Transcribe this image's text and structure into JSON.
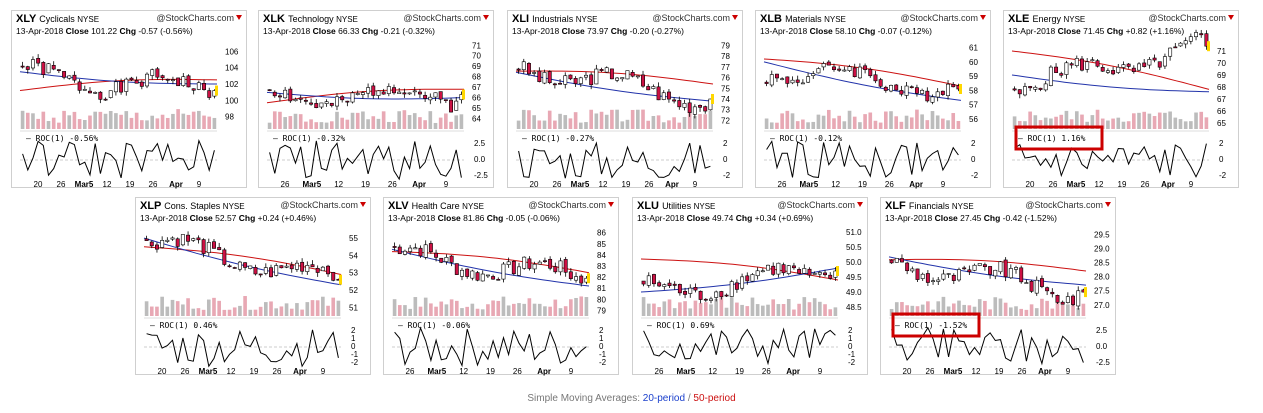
{
  "charts": [
    {
      "symbol": "XLY",
      "name": "Cyclicals",
      "exchange": "NYSE",
      "brand": "@StockCharts.com",
      "date": "13-Apr-2018",
      "close_label": "Close",
      "close": "101.22",
      "chg_label": "Chg",
      "chg": "-0.57 (-0.56%)",
      "chg_dir": "down",
      "yticks": [
        "106",
        "104",
        "102",
        "100",
        "98"
      ],
      "ymin": 96.5,
      "ymax": 107.5,
      "roc_label": "ROC(1) -0.56%",
      "roc_ticks": [],
      "xticks": [
        "20",
        "26",
        "Mar5",
        "12",
        "19",
        "26",
        "Apr",
        "9"
      ],
      "highlight": false,
      "seed": 1,
      "start": 103,
      "end": 101.2,
      "sma20": [
        103.5,
        102.0
      ],
      "sma50": [
        101.2,
        102.5
      ]
    },
    {
      "symbol": "XLK",
      "name": "Technology",
      "exchange": "NYSE",
      "brand": "@StockCharts.com",
      "date": "13-Apr-2018",
      "close_label": "Close",
      "close": "66.33",
      "chg_label": "Chg",
      "chg": "-0.21 (-0.32%)",
      "chg_dir": "down",
      "yticks": [
        "71",
        "70",
        "69",
        "68",
        "67",
        "66",
        "65",
        "64"
      ],
      "ymin": 63,
      "ymax": 71.6,
      "roc_label": "ROC(1) -0.32%",
      "roc_ticks": [
        "2.5",
        "0.0",
        "-2.5"
      ],
      "xticks": [
        "26",
        "Mar5",
        "12",
        "19",
        "26",
        "Apr",
        "9"
      ],
      "highlight": false,
      "seed": 2,
      "start": 66,
      "end": 66.3,
      "sma20": [
        66.5,
        66.0
      ],
      "sma50": [
        65.5,
        66.8
      ]
    },
    {
      "symbol": "XLI",
      "name": "Industrials",
      "exchange": "NYSE",
      "brand": "@StockCharts.com",
      "date": "13-Apr-2018",
      "close_label": "Close",
      "close": "73.97",
      "chg_label": "Chg",
      "chg": "-0.20 (-0.27%)",
      "chg_dir": "down",
      "yticks": [
        "79",
        "78",
        "77",
        "76",
        "75",
        "74",
        "73",
        "72"
      ],
      "ymin": 71.2,
      "ymax": 79.6,
      "roc_label": "ROC(1) -0.27%",
      "roc_ticks": [
        "2",
        "0",
        "-2"
      ],
      "xticks": [
        "20",
        "26",
        "Mar5",
        "12",
        "19",
        "26",
        "Apr",
        "9"
      ],
      "highlight": false,
      "seed": 3,
      "start": 77,
      "end": 74,
      "sma20": [
        76.5,
        73.8
      ],
      "sma50": [
        76.6,
        75.4
      ]
    },
    {
      "symbol": "XLB",
      "name": "Materials",
      "exchange": "NYSE",
      "brand": "@StockCharts.com",
      "date": "13-Apr-2018",
      "close_label": "Close",
      "close": "58.10",
      "chg_label": "Chg",
      "chg": "-0.07 (-0.12%)",
      "chg_dir": "down",
      "yticks": [
        "61",
        "60",
        "59",
        "58",
        "57",
        "56"
      ],
      "ymin": 55.3,
      "ymax": 61.6,
      "roc_label": "ROC(1) -0.12%",
      "roc_ticks": [
        "2",
        "0",
        "-2"
      ],
      "xticks": [
        "26",
        "Mar5",
        "12",
        "19",
        "26",
        "Apr",
        "9"
      ],
      "highlight": false,
      "seed": 4,
      "start": 59.5,
      "end": 58.1,
      "sma20": [
        60,
        57.3
      ],
      "sma50": [
        60.2,
        58.3
      ]
    },
    {
      "symbol": "XLE",
      "name": "Energy",
      "exchange": "NYSE",
      "brand": "@StockCharts.com",
      "date": "13-Apr-2018",
      "close_label": "Close",
      "close": "71.45",
      "chg_label": "Chg",
      "chg": "+0.82 (+1.16%)",
      "chg_dir": "up",
      "yticks": [
        "71",
        "70",
        "69",
        "68",
        "67",
        "66",
        "65"
      ],
      "ymin": 64.5,
      "ymax": 72,
      "roc_label": "ROC(1) 1.16%",
      "roc_ticks": [
        "2",
        "0",
        "-2"
      ],
      "xticks": [
        "20",
        "26",
        "Mar5",
        "12",
        "19",
        "26",
        "Apr",
        "9"
      ],
      "highlight": true,
      "seed": 5,
      "start": 68,
      "end": 71.4,
      "sma20": [
        69,
        67.6
      ],
      "sma50": [
        71,
        67.8
      ]
    },
    {
      "symbol": "XLP",
      "name": "Cons. Staples",
      "exchange": "NYSE",
      "brand": "@StockCharts.com",
      "date": "13-Apr-2018",
      "close_label": "Close",
      "close": "52.57",
      "chg_label": "Chg",
      "chg": "+0.24 (+0.46%)",
      "chg_dir": "up",
      "yticks": [
        "55",
        "54",
        "53",
        "52",
        "51"
      ],
      "ymin": 50.5,
      "ymax": 55.7,
      "roc_label": "ROC(1) 0.46%",
      "roc_ticks": [
        "2",
        "1",
        "0",
        "-1",
        "-2"
      ],
      "xticks": [
        "20",
        "26",
        "Mar5",
        "12",
        "19",
        "26",
        "Apr",
        "9"
      ],
      "highlight": false,
      "seed": 6,
      "start": 54.8,
      "end": 52.6,
      "sma20": [
        55,
        52.3
      ],
      "sma50": [
        54.5,
        52.9
      ]
    },
    {
      "symbol": "XLV",
      "name": "Health Care",
      "exchange": "NYSE",
      "brand": "@StockCharts.com",
      "date": "13-Apr-2018",
      "close_label": "Close",
      "close": "81.86",
      "chg_label": "Chg",
      "chg": "-0.05 (-0.06%)",
      "chg_dir": "down",
      "yticks": [
        "86",
        "85",
        "84",
        "83",
        "82",
        "81",
        "80",
        "79"
      ],
      "ymin": 78.5,
      "ymax": 86.6,
      "roc_label": "ROC(1) -0.06%",
      "roc_ticks": [
        "2",
        "1",
        "0",
        "-1",
        "-2"
      ],
      "xticks": [
        "26",
        "Mar5",
        "12",
        "19",
        "26",
        "Apr",
        "9"
      ],
      "highlight": false,
      "seed": 7,
      "start": 84,
      "end": 81.9,
      "sma20": [
        84.5,
        81.2
      ],
      "sma50": [
        84.3,
        82.4
      ]
    },
    {
      "symbol": "XLU",
      "name": "Utilities",
      "exchange": "NYSE",
      "brand": "@StockCharts.com",
      "date": "13-Apr-2018",
      "close_label": "Close",
      "close": "49.74",
      "chg_label": "Chg",
      "chg": "+0.34 (+0.69%)",
      "chg_dir": "up",
      "yticks": [
        "51.0",
        "50.5",
        "50.0",
        "49.5",
        "49.0",
        "48.5"
      ],
      "ymin": 48.2,
      "ymax": 51.2,
      "roc_label": "ROC(1) 0.69%",
      "roc_ticks": [
        "2",
        "1",
        "0",
        "-1",
        "-2"
      ],
      "xticks": [
        "26",
        "Mar5",
        "12",
        "19",
        "26",
        "Apr",
        "9"
      ],
      "highlight": false,
      "seed": 8,
      "start": 49,
      "end": 49.7,
      "sma20": [
        49.0,
        49.8
      ],
      "sma50": [
        50.1,
        49.4
      ]
    },
    {
      "symbol": "XLF",
      "name": "Financials",
      "exchange": "NYSE",
      "brand": "@StockCharts.com",
      "date": "13-Apr-2018",
      "close_label": "Close",
      "close": "27.45",
      "chg_label": "Chg",
      "chg": "-0.42 (-1.52%)",
      "chg_dir": "down",
      "yticks": [
        "29.5",
        "29.0",
        "28.5",
        "28.0",
        "27.5",
        "27.0"
      ],
      "ymin": 26.6,
      "ymax": 29.8,
      "roc_label": "ROC(1) -1.52%",
      "roc_ticks": [
        "2.5",
        "0.0",
        "-2.5"
      ],
      "xticks": [
        "20",
        "26",
        "Mar5",
        "12",
        "19",
        "26",
        "Apr",
        "9"
      ],
      "highlight": true,
      "seed": 9,
      "start": 28.5,
      "end": 27.45,
      "sma20": [
        28.7,
        27.7
      ],
      "sma50": [
        28.6,
        28.2
      ]
    }
  ],
  "footer": {
    "prefix": "Simple Moving Averages: ",
    "sma20_label": "20-period",
    "sep": " / ",
    "sma50_label": "50-period"
  },
  "colors": {
    "up_fill": "#ffffff",
    "down_fill": "#cc1144",
    "candle_outline": "#000000",
    "sma20": "#2233aa",
    "sma50": "#cc1111",
    "volume_up": "#bcbcbc",
    "volume_down": "#e8a8b4",
    "highlight": "#cc0000",
    "last_marker": "#ffd700"
  }
}
